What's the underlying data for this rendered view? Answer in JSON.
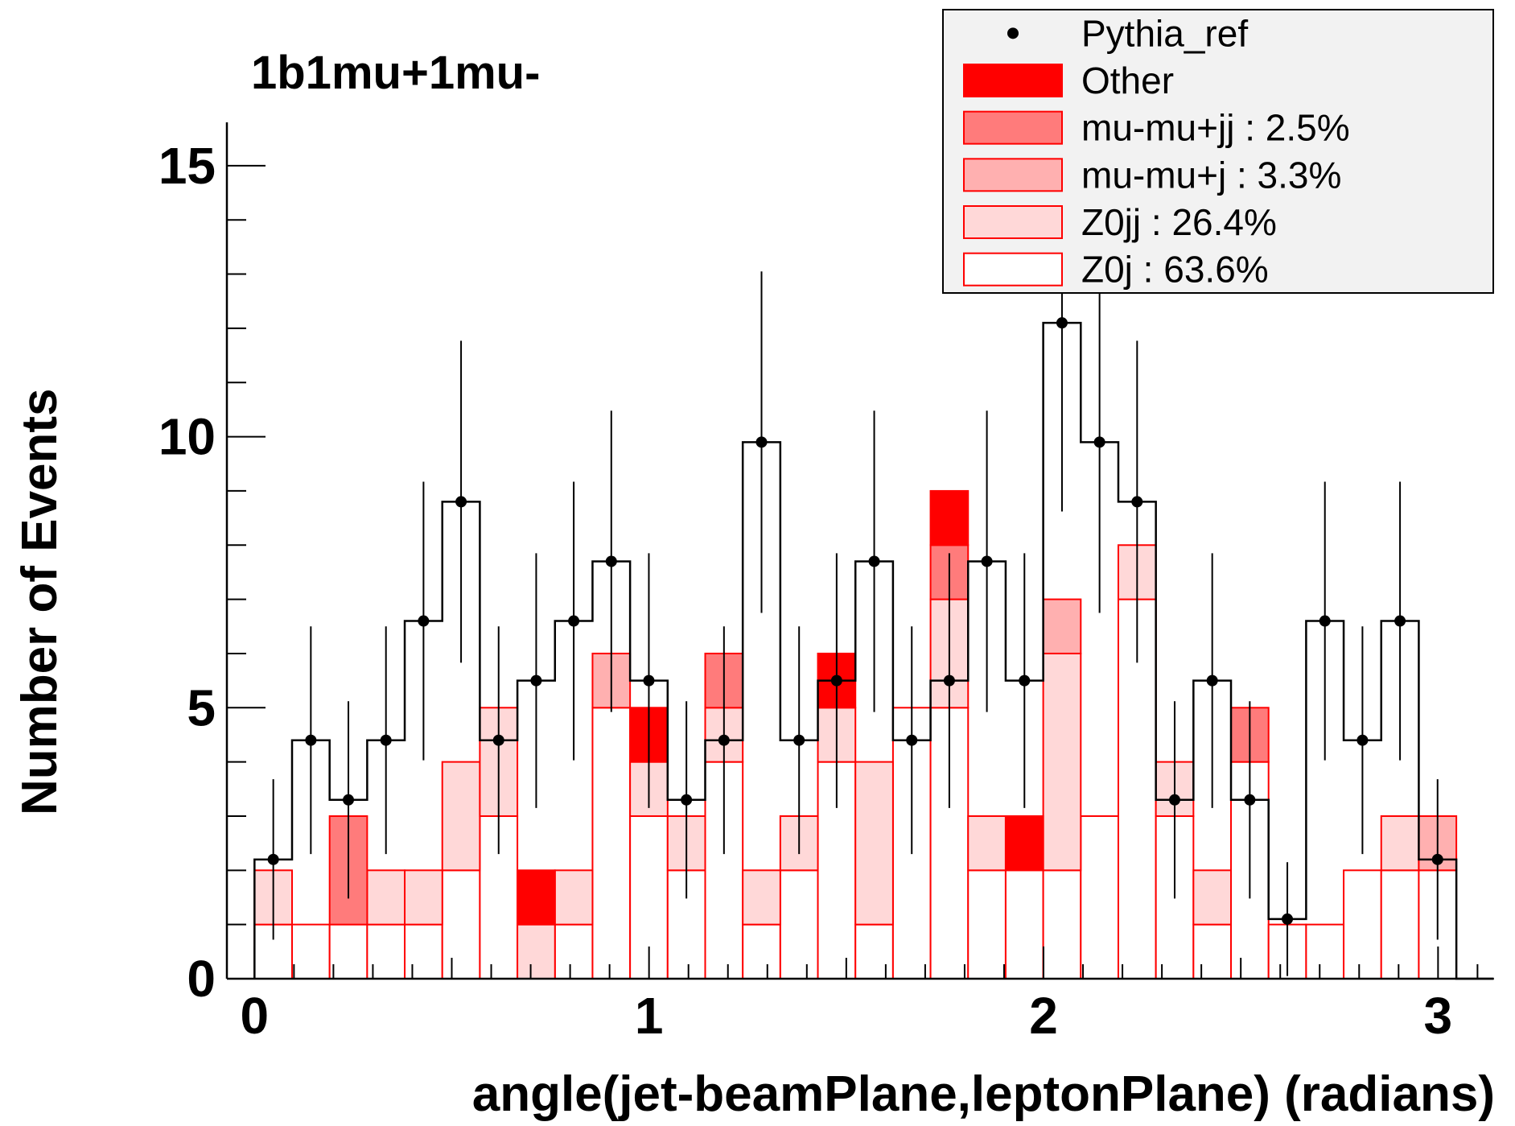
{
  "chart_data": {
    "type": "histogram",
    "title": "1b1mu+1mu-",
    "xlabel": "angle(jet-beamPlane,leptonPlane) (radians)",
    "ylabel": "Number of Events",
    "xlim": [
      -0.07,
      3.14
    ],
    "ylim": [
      0,
      15.8
    ],
    "x_ticks": [
      0,
      1,
      2,
      3
    ],
    "y_ticks": [
      0,
      5,
      10,
      15
    ],
    "bin_edges": [
      0.0,
      0.0952,
      0.1904,
      0.2856,
      0.3808,
      0.476,
      0.5712,
      0.6664,
      0.7616,
      0.8568,
      0.952,
      1.0472,
      1.1424,
      1.2376,
      1.3328,
      1.428,
      1.5232,
      1.6184,
      1.7136,
      1.8088,
      1.904,
      1.9992,
      2.0944,
      2.1896,
      2.2848,
      2.38,
      2.4752,
      2.5704,
      2.6656,
      2.7608,
      2.856,
      2.9512,
      3.0464,
      3.1416
    ],
    "legend_position": "top-right",
    "legend": [
      {
        "label": "Pythia_ref",
        "style": "marker",
        "color": "#000000"
      },
      {
        "label": "Other",
        "style": "fill",
        "color": "#ff0000"
      },
      {
        "label": "mu-mu+jj : 2.5%",
        "style": "fill",
        "color": "#ff7b7b"
      },
      {
        "label": "mu-mu+j : 3.3%",
        "style": "fill",
        "color": "#ffb0b0"
      },
      {
        "label": "Z0jj : 26.4%",
        "style": "fill",
        "color": "#ffd8d8"
      },
      {
        "label": "Z0j : 63.6%",
        "style": "fill",
        "color": "#ffffff"
      }
    ],
    "stacked_series": [
      {
        "name": "Z0j : 63.6%",
        "color": "#ffffff",
        "values": [
          1,
          1,
          1,
          1,
          1,
          2,
          3,
          0,
          1,
          5,
          3,
          2,
          4,
          1,
          2,
          4,
          1,
          5,
          5,
          2,
          2,
          2,
          3,
          7,
          3,
          1,
          4,
          1,
          1,
          2,
          2,
          2,
          0
        ]
      },
      {
        "name": "Z0jj : 26.4%",
        "color": "#ffd8d8",
        "values": [
          1,
          0,
          0,
          1,
          1,
          2,
          2,
          1,
          1,
          0,
          1,
          1,
          1,
          1,
          1,
          1,
          3,
          0,
          2,
          1,
          0,
          4,
          0,
          1,
          1,
          1,
          0,
          0,
          0,
          0,
          1,
          0,
          0
        ]
      },
      {
        "name": "mu-mu+j : 3.3%",
        "color": "#ffb0b0",
        "values": [
          0,
          0,
          0,
          0,
          0,
          0,
          0,
          0,
          0,
          1,
          0,
          0,
          0,
          0,
          0,
          0,
          0,
          0,
          0,
          0,
          0,
          1,
          0,
          0,
          0,
          0,
          0,
          0,
          0,
          0,
          0,
          1,
          0
        ]
      },
      {
        "name": "mu-mu+jj : 2.5%",
        "color": "#ff7b7b",
        "values": [
          0,
          0,
          2,
          0,
          0,
          0,
          0,
          0,
          0,
          0,
          0,
          0,
          1,
          0,
          0,
          0,
          0,
          0,
          1,
          0,
          0,
          0,
          0,
          0,
          0,
          0,
          1,
          0,
          0,
          0,
          0,
          0,
          0
        ]
      },
      {
        "name": "Other",
        "color": "#ff0000",
        "values": [
          0,
          0,
          0,
          0,
          0,
          0,
          0,
          1,
          0,
          0,
          1,
          0,
          0,
          0,
          0,
          1,
          0,
          0,
          1,
          0,
          1,
          0,
          0,
          0,
          0,
          0,
          0,
          0,
          0,
          0,
          0,
          0,
          0
        ]
      }
    ],
    "reference_series": {
      "name": "Pythia_ref",
      "values": [
        2.2,
        4.4,
        3.3,
        4.4,
        6.6,
        8.8,
        4.4,
        5.5,
        6.6,
        7.7,
        5.5,
        3.3,
        4.4,
        9.9,
        4.4,
        5.5,
        7.7,
        4.4,
        5.5,
        7.7,
        5.5,
        12.1,
        9.9,
        8.8,
        3.3,
        5.5,
        3.3,
        1.1,
        6.6,
        4.4,
        6.6,
        2.2,
        0
      ],
      "errors": [
        1.48,
        2.1,
        1.82,
        2.1,
        2.57,
        2.97,
        2.1,
        2.35,
        2.57,
        2.78,
        2.35,
        1.82,
        2.1,
        3.15,
        2.1,
        2.35,
        2.78,
        2.1,
        2.35,
        2.78,
        2.35,
        3.48,
        3.15,
        2.97,
        1.82,
        2.35,
        1.82,
        1.05,
        2.57,
        2.1,
        2.57,
        1.48,
        0
      ]
    }
  }
}
